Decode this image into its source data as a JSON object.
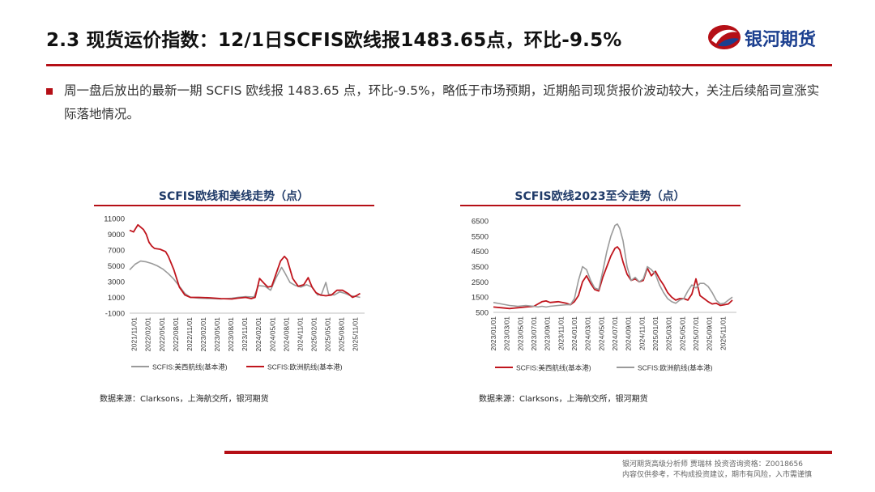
{
  "header": {
    "title": "2.3 现货运价指数：12/1日SCFIS欧线报1483.65点，环比-9.5%",
    "logo_text": "银河期货"
  },
  "body": {
    "paragraph": "周一盘后放出的最新一期 SCFIS 欧线报 1483.65 点，环比-9.5%，略低于市场预期，近期船司现货报价波动较大，关注后续船司宣涨实际落地情况。"
  },
  "colors": {
    "accent_red": "#b50f16",
    "navy": "#1f3a68",
    "series_red": "#c0151d",
    "series_gray": "#9a9a9a"
  },
  "chart_data": [
    {
      "type": "line",
      "title": "SCFIS欧线和美线走势（点）",
      "source": "数据来源：Clarksons，上海航交所，银河期货",
      "ylim": [
        -1000,
        11000
      ],
      "yticks": [
        "11000",
        "9000",
        "7000",
        "5000",
        "3000",
        "1000",
        "-1000"
      ],
      "xlim": [
        2021.75,
        2026.0
      ],
      "xticks": [
        "2021/11/01",
        "2022/02/01",
        "2022/05/01",
        "2022/08/01",
        "2022/11/01",
        "2023/02/01",
        "2023/05/01",
        "2023/08/01",
        "2023/11/01",
        "2024/02/01",
        "2024/05/01",
        "2024/08/01",
        "2024/11/01",
        "2025/02/01",
        "2025/05/01",
        "2025/08/01",
        "2025/11/01"
      ],
      "grid": false,
      "legend_position": "bottom",
      "series": [
        {
          "name": "SCFIS:美西航线(基本港)",
          "color": "#9a9a9a",
          "x": [
            2021.75,
            2021.85,
            2021.95,
            2022.05,
            2022.15,
            2022.25,
            2022.35,
            2022.45,
            2022.55,
            2022.65,
            2022.75,
            2022.85,
            2023.0,
            2023.2,
            2023.4,
            2023.6,
            2023.7,
            2023.85,
            2024.0,
            2024.08,
            2024.2,
            2024.3,
            2024.4,
            2024.5,
            2024.55,
            2024.65,
            2024.75,
            2024.85,
            2024.95,
            2025.05,
            2025.15,
            2025.22,
            2025.3,
            2025.35,
            2025.45,
            2025.55,
            2025.65,
            2025.75,
            2025.85,
            2025.92
          ],
          "values": [
            4500,
            5200,
            5600,
            5500,
            5300,
            5000,
            4600,
            4000,
            3300,
            2400,
            1500,
            1000,
            900,
            850,
            800,
            900,
            1000,
            1100,
            1050,
            2500,
            2400,
            1900,
            3500,
            4800,
            4200,
            2900,
            2500,
            2300,
            2600,
            2300,
            1300,
            1400,
            2900,
            1400,
            1300,
            1700,
            1500,
            1200,
            1100,
            1000
          ]
        },
        {
          "name": "SCFIS:欧洲航线(基本港)",
          "color": "#c0151d",
          "x": [
            2021.75,
            2021.82,
            2021.9,
            2021.95,
            2022.0,
            2022.05,
            2022.1,
            2022.15,
            2022.2,
            2022.3,
            2022.4,
            2022.45,
            2022.55,
            2022.65,
            2022.75,
            2022.85,
            2023.0,
            2023.2,
            2023.4,
            2023.6,
            2023.7,
            2023.85,
            2023.95,
            2024.02,
            2024.1,
            2024.18,
            2024.25,
            2024.32,
            2024.4,
            2024.48,
            2024.55,
            2024.6,
            2024.7,
            2024.8,
            2024.9,
            2024.98,
            2025.05,
            2025.12,
            2025.2,
            2025.3,
            2025.4,
            2025.5,
            2025.6,
            2025.7,
            2025.78,
            2025.85,
            2025.92
          ],
          "values": [
            9500,
            9300,
            10200,
            9900,
            9600,
            9000,
            8000,
            7500,
            7200,
            7100,
            6800,
            6200,
            4500,
            2300,
            1300,
            1000,
            1000,
            950,
            850,
            800,
            900,
            1000,
            850,
            1000,
            3400,
            2800,
            2300,
            2400,
            4000,
            5600,
            6200,
            5800,
            3400,
            2400,
            2600,
            3500,
            2300,
            1600,
            1300,
            1200,
            1300,
            1900,
            1900,
            1500,
            1000,
            1200,
            1500
          ]
        }
      ]
    },
    {
      "type": "line",
      "title": "SCFIS欧线2023至今走势（点）",
      "source": "数据来源：Clarksons，上海航交所，银河期货",
      "ylim": [
        500,
        6500
      ],
      "yticks": [
        "6500",
        "5500",
        "4500",
        "3500",
        "2500",
        "1500",
        "500"
      ],
      "xlim": [
        2023.0,
        2026.0
      ],
      "xticks": [
        "2023/01/01",
        "2023/03/01",
        "2023/05/01",
        "2023/07/01",
        "2023/09/01",
        "2023/11/01",
        "2024/01/01",
        "2024/03/01",
        "2024/05/01",
        "2024/07/01",
        "2024/09/01",
        "2024/11/01",
        "2025/01/01",
        "2025/03/01",
        "2025/05/01",
        "2025/07/01",
        "2025/09/01",
        "2025/11/01"
      ],
      "grid": false,
      "legend_position": "bottom",
      "series": [
        {
          "name": "SCFIS:美西航线(基本港)",
          "color": "#c0151d",
          "x": [
            2023.0,
            2023.1,
            2023.2,
            2023.3,
            2023.4,
            2023.5,
            2023.55,
            2023.6,
            2023.65,
            2023.7,
            2023.8,
            2023.9,
            2023.95,
            2024.0,
            2024.05,
            2024.1,
            2024.15,
            2024.2,
            2024.25,
            2024.3,
            2024.35,
            2024.4,
            2024.45,
            2024.5,
            2024.53,
            2024.56,
            2024.6,
            2024.65,
            2024.7,
            2024.75,
            2024.8,
            2024.85,
            2024.9,
            2024.95,
            2025.0,
            2025.05,
            2025.1,
            2025.15,
            2025.2,
            2025.25,
            2025.3,
            2025.35,
            2025.4,
            2025.45,
            2025.5,
            2025.55,
            2025.6,
            2025.65,
            2025.7,
            2025.75,
            2025.8,
            2025.85,
            2025.9,
            2025.95
          ],
          "values": [
            850,
            800,
            750,
            800,
            850,
            900,
            1050,
            1200,
            1250,
            1150,
            1200,
            1100,
            1000,
            1200,
            1600,
            2500,
            2900,
            2400,
            2000,
            1900,
            2800,
            3500,
            4200,
            4700,
            4800,
            4600,
            3800,
            3000,
            2600,
            2700,
            2500,
            2600,
            3400,
            2900,
            3200,
            2700,
            2300,
            1800,
            1500,
            1300,
            1400,
            1400,
            1300,
            1700,
            2700,
            1600,
            1400,
            1200,
            1050,
            1100,
            950,
            1000,
            1050,
            1300
          ]
        },
        {
          "name": "SCFIS:欧洲航线(基本港)",
          "color": "#9a9a9a",
          "x": [
            2023.0,
            2023.1,
            2023.2,
            2023.3,
            2023.4,
            2023.5,
            2023.55,
            2023.6,
            2023.65,
            2023.7,
            2023.8,
            2023.9,
            2023.95,
            2024.0,
            2024.05,
            2024.1,
            2024.15,
            2024.2,
            2024.25,
            2024.3,
            2024.35,
            2024.4,
            2024.45,
            2024.5,
            2024.53,
            2024.56,
            2024.6,
            2024.65,
            2024.7,
            2024.75,
            2024.8,
            2024.85,
            2024.9,
            2024.95,
            2025.0,
            2025.05,
            2025.1,
            2025.15,
            2025.2,
            2025.25,
            2025.3,
            2025.35,
            2025.4,
            2025.45,
            2025.5,
            2025.55,
            2025.6,
            2025.65,
            2025.7,
            2025.75,
            2025.8,
            2025.85,
            2025.9,
            2025.95
          ],
          "values": [
            1150,
            1050,
            950,
            900,
            950,
            900,
            850,
            900,
            850,
            900,
            950,
            1000,
            1000,
            1400,
            2600,
            3500,
            3300,
            2600,
            2100,
            2000,
            3200,
            4500,
            5500,
            6200,
            6300,
            6000,
            5200,
            3500,
            2600,
            2800,
            2500,
            2700,
            3500,
            3300,
            3000,
            2300,
            1800,
            1400,
            1200,
            1100,
            1300,
            1400,
            1900,
            2300,
            2100,
            2400,
            2400,
            2200,
            1800,
            1300,
            1050,
            1100,
            1300,
            1500
          ]
        }
      ]
    }
  ],
  "footer": {
    "analyst": "银河期货高级分析师 贾瑞林 投资咨询资格：Z0018656",
    "disclaimer": "内容仅供参考，不构成投资建议，期市有风险，入市需谨慎"
  }
}
